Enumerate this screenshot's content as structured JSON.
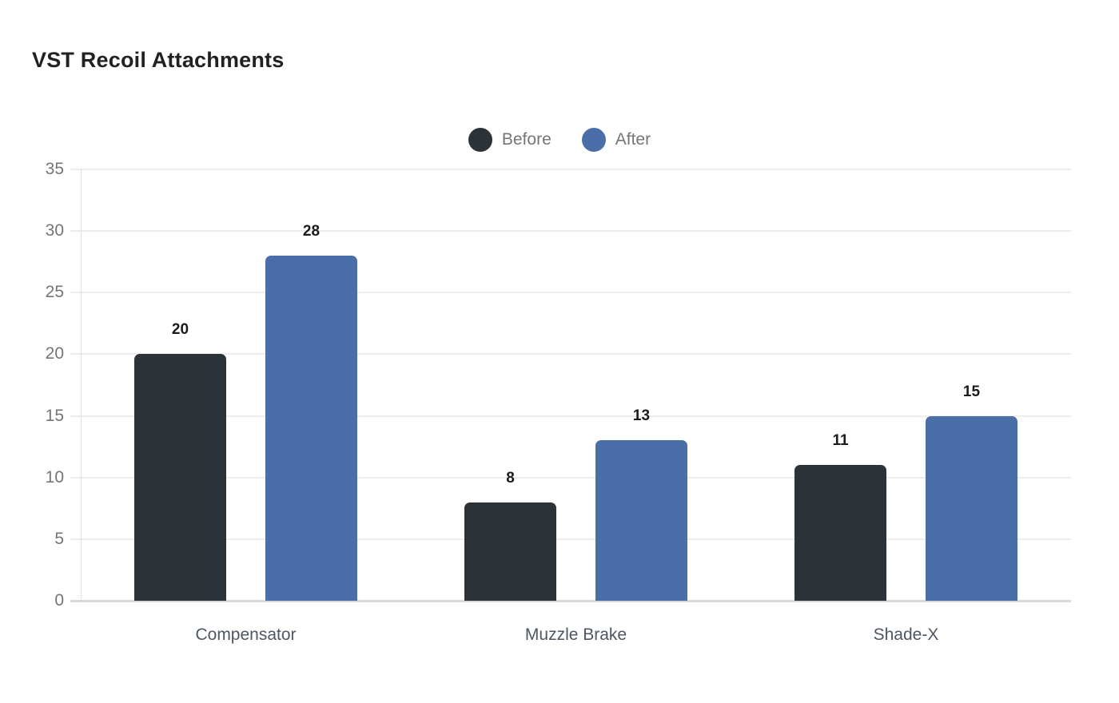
{
  "chart_data": {
    "type": "bar",
    "title": "VST Recoil Attachments",
    "categories": [
      "Compensator",
      "Muzzle Brake",
      "Shade-X"
    ],
    "series": [
      {
        "name": "Before",
        "color": "#2b3338",
        "values": [
          20,
          8,
          11
        ]
      },
      {
        "name": "After",
        "color": "#4a6fa8",
        "values": [
          28,
          13,
          15
        ]
      }
    ],
    "ylim": [
      0,
      35
    ],
    "yticks": [
      0,
      5,
      10,
      15,
      20,
      25,
      30,
      35
    ],
    "grid": true,
    "legend_position": "top-center",
    "value_labels": true,
    "xlabel": "",
    "ylabel": ""
  },
  "style": {
    "background": "#ffffff",
    "title_color": "#212121",
    "grid_color": "#ededf0",
    "baseline_color": "#d8d9dd",
    "axis_text_color": "#757575",
    "category_text_color": "#4d5761",
    "value_label_color": "#1b1b1b",
    "legend_text_color": "#757575"
  }
}
